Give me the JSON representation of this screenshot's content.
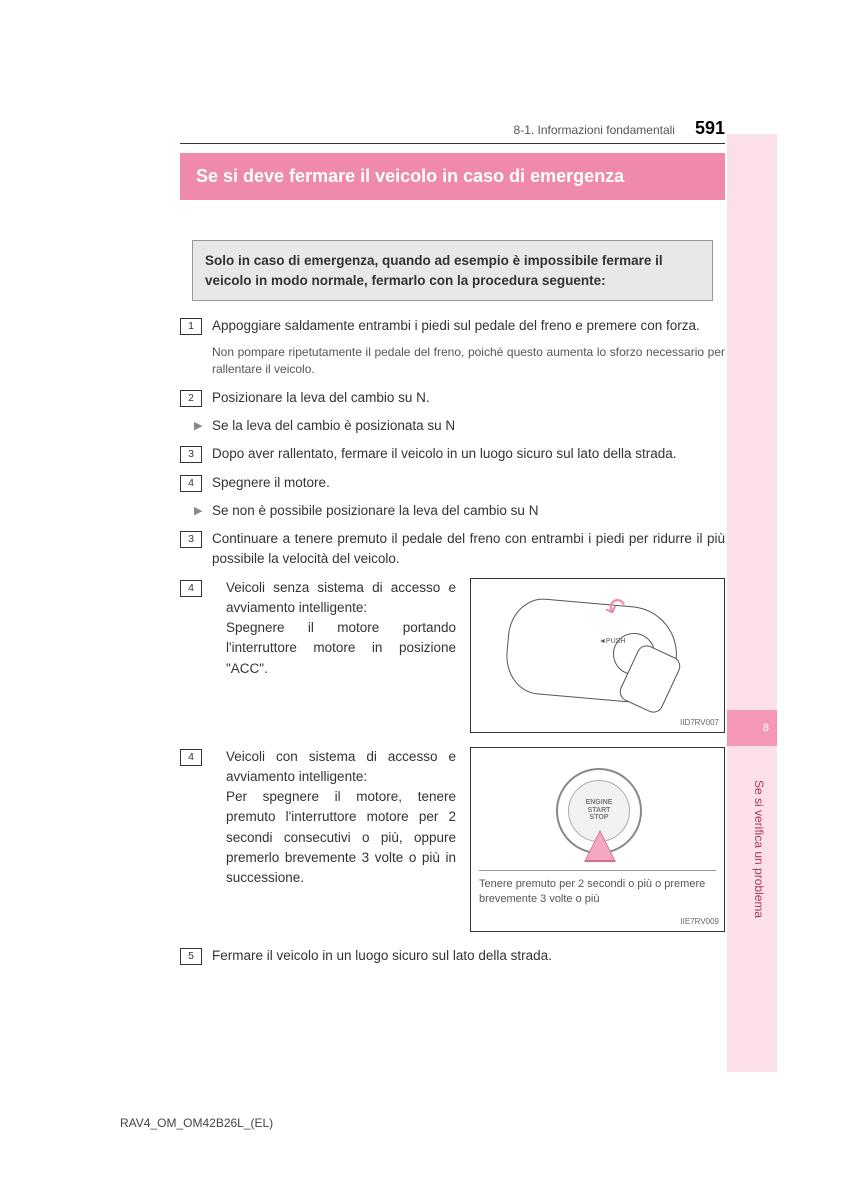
{
  "header": {
    "section": "8-1. Informazioni fondamentali",
    "page": "591"
  },
  "title": "Se si deve fermare il veicolo in caso di emergenza",
  "intro": "Solo in caso di emergenza, quando ad esempio è impossibile fermare il veicolo in modo normale, fermarlo con la procedura seguente:",
  "steps": {
    "s1_num": "1",
    "s1": "Appoggiare saldamente entrambi i piedi sul pedale del freno e premere con forza.",
    "s1_note": "Non pompare ripetutamente il pedale del freno, poiché questo aumenta lo sforzo necessario per rallentare il veicolo.",
    "s2_num": "2",
    "s2": "Posizionare la leva del cambio su N.",
    "b1": "Se la leva del cambio è posizionata su N",
    "s3_num": "3",
    "s3": "Dopo aver rallentato, fermare il veicolo in un luogo sicuro sul lato della strada.",
    "s4_num": "4",
    "s4": "Spegnere il motore.",
    "b2": "Se non è possibile posizionare la leva del cambio su N",
    "s3b_num": "3",
    "s3b": "Continuare a tenere premuto il pedale del freno con entrambi i piedi per ridurre il più possibile la velocità del veicolo.",
    "s4b_num": "4",
    "s4b": "Veicoli senza sistema di accesso e avviamento intelligente:\nSpegnere il motore portando l'interruttore motore in posizione \"ACC\".",
    "s4c_num": "4",
    "s4c": "Veicoli con sistema di accesso e avviamento intelligente:\nPer spegnere il motore, tenere premuto l'interruttore motore per 2 secondi consecutivi o più, oppure premerlo brevemente 3 volte o più in successione.",
    "s5_num": "5",
    "s5": "Fermare il veicolo in un luogo sicuro sul lato della strada."
  },
  "fig1": {
    "arrow": "↶",
    "push": "◄PUSH",
    "label": "IID7RV007"
  },
  "fig2": {
    "btn": "ENGINE\nSTART\nSTOP",
    "caption": "Tenere premuto per 2 secondi o più o premere brevemente 3 volte o più",
    "label": "IIE7RV009"
  },
  "sidebar": {
    "num": "8",
    "text": "Se si verifica un problema"
  },
  "footer": "RAV4_OM_OM42B26L_(EL)",
  "colors": {
    "accent": "#f08aaa",
    "tab_light": "#fce0e8",
    "tab_dark": "#f598b7"
  }
}
